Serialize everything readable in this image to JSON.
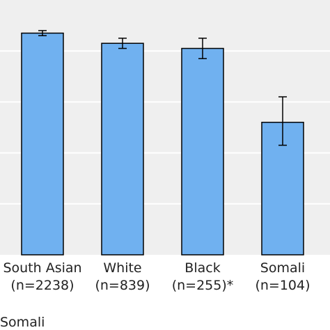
{
  "chart_data": {
    "type": "bar",
    "categories": [
      [
        "South Asian",
        "(n=2238)"
      ],
      [
        "White",
        "(n=839)"
      ],
      [
        "Black",
        "(n=255)*"
      ],
      [
        "Somali",
        "(n=104)"
      ]
    ],
    "values": [
      87,
      83,
      81,
      52
    ],
    "error_low": [
      86,
      81,
      77,
      43
    ],
    "error_high": [
      88,
      85,
      85,
      62
    ],
    "title": "",
    "xlabel": "",
    "ylabel": "",
    "ylim": [
      0,
      100
    ],
    "grid": true,
    "y_tick_labels_visible": false,
    "footer_text": "Somali",
    "colors": {
      "bar_fill": "#70b1f0",
      "bar_stroke": "#000000",
      "plot_background": "#efefef",
      "grid": "#ffffff",
      "error_bar": "#000000"
    }
  }
}
